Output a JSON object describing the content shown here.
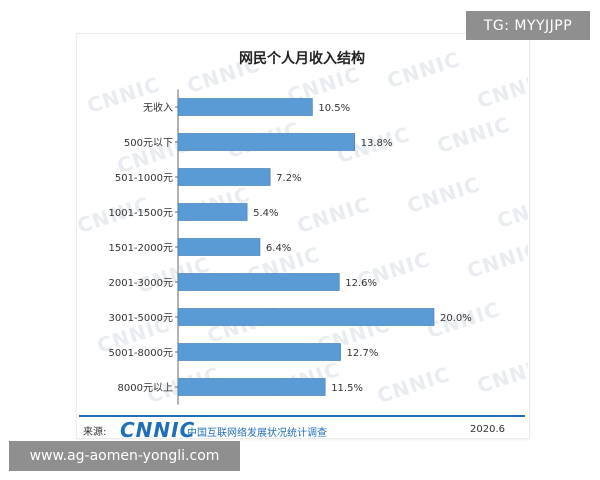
{
  "chart_data": {
    "type": "bar",
    "orientation": "horizontal",
    "title": "网民个人月收入结构",
    "categories": [
      "无收入",
      "500元以下",
      "501-1000元",
      "1001-1500元",
      "1501-2000元",
      "2001-3000元",
      "3001-5000元",
      "5001-8000元",
      "8000元以上"
    ],
    "values": [
      10.5,
      13.8,
      7.2,
      5.4,
      6.4,
      12.6,
      20.0,
      12.7,
      11.5
    ],
    "value_labels": [
      "10.5%",
      "13.8%",
      "7.2%",
      "5.4%",
      "6.4%",
      "12.6%",
      "20.0%",
      "12.7%",
      "11.5%"
    ],
    "unit": "%",
    "xlim": [
      0,
      20
    ],
    "grid": false,
    "legend": "none",
    "bar_color": "#5b9bd5"
  },
  "watermark_text": "CNNIC",
  "footer": {
    "source_label": "来源:",
    "logo": "CNNIC",
    "org": "中国互联网络发展状况统计调查",
    "date": "2020.6"
  },
  "overlays": {
    "tg": "TG: MYYJJPP",
    "url": "www.ag-aomen-yongli.com"
  },
  "colors": {
    "accent": "#1f6fb8",
    "bar": "#5b9bd5",
    "bar_edge": "#3a78b8"
  }
}
